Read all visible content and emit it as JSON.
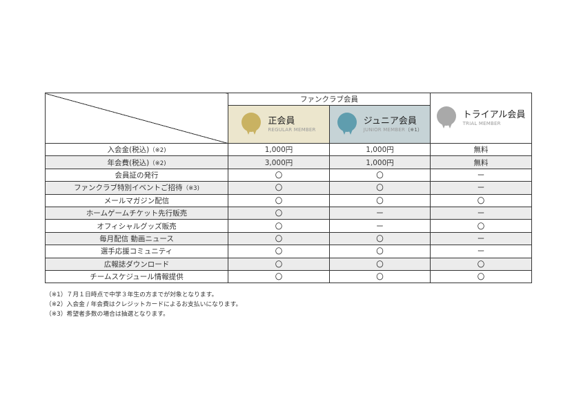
{
  "table": {
    "group_header": "ファンクラブ会員",
    "tiers": [
      {
        "name": "正会員",
        "subtitle": "REGULAR MEMBER",
        "note": "",
        "medal_color": "#c9b262"
      },
      {
        "name": "ジュニア会員",
        "subtitle": "JUNIOR MEMBER",
        "note": "（※1）",
        "medal_color": "#5f9dae"
      },
      {
        "name": "トライアル会員",
        "subtitle": "TRIAL MEMBER",
        "note": "",
        "medal_color": "#a9a9a9"
      }
    ],
    "rows": [
      {
        "label": "入会金(税込)",
        "note": "（※2)",
        "values": [
          "1,000円",
          "1,000円",
          "無料"
        ]
      },
      {
        "label": "年会費(税込)",
        "note": "（※2)",
        "values": [
          "3,000円",
          "1,000円",
          "無料"
        ]
      },
      {
        "label": "会員証の発行",
        "note": "",
        "values": [
          "〇",
          "〇",
          "ー"
        ]
      },
      {
        "label": "ファンクラブ特別イベントご招待",
        "note": "（※3)",
        "values": [
          "〇",
          "〇",
          "ー"
        ]
      },
      {
        "label": "メールマガジン配信",
        "note": "",
        "values": [
          "〇",
          "〇",
          "〇"
        ]
      },
      {
        "label": "ホームゲームチケット先行販売",
        "note": "",
        "values": [
          "〇",
          "ー",
          "ー"
        ]
      },
      {
        "label": "オフィシャルグッズ販売",
        "note": "",
        "values": [
          "〇",
          "ー",
          "〇"
        ]
      },
      {
        "label": "毎月配信 動画ニュース",
        "note": "",
        "values": [
          "〇",
          "〇",
          "ー"
        ]
      },
      {
        "label": "選手応援コミュニティ",
        "note": "",
        "values": [
          "〇",
          "〇",
          "ー"
        ]
      },
      {
        "label": "広報誌ダウンロード",
        "note": "",
        "values": [
          "〇",
          "〇",
          "〇"
        ]
      },
      {
        "label": "チームスケジュール情報提供",
        "note": "",
        "values": [
          "〇",
          "〇",
          "〇"
        ]
      }
    ]
  },
  "footnotes": [
    "（※1）７月１日時点で中学３年生の方までが対象となります。",
    "（※2）入会金 / 年会費はクレジットカードによるお支払いになります。",
    "（※3）希望者多数の場合は抽選となります。"
  ]
}
